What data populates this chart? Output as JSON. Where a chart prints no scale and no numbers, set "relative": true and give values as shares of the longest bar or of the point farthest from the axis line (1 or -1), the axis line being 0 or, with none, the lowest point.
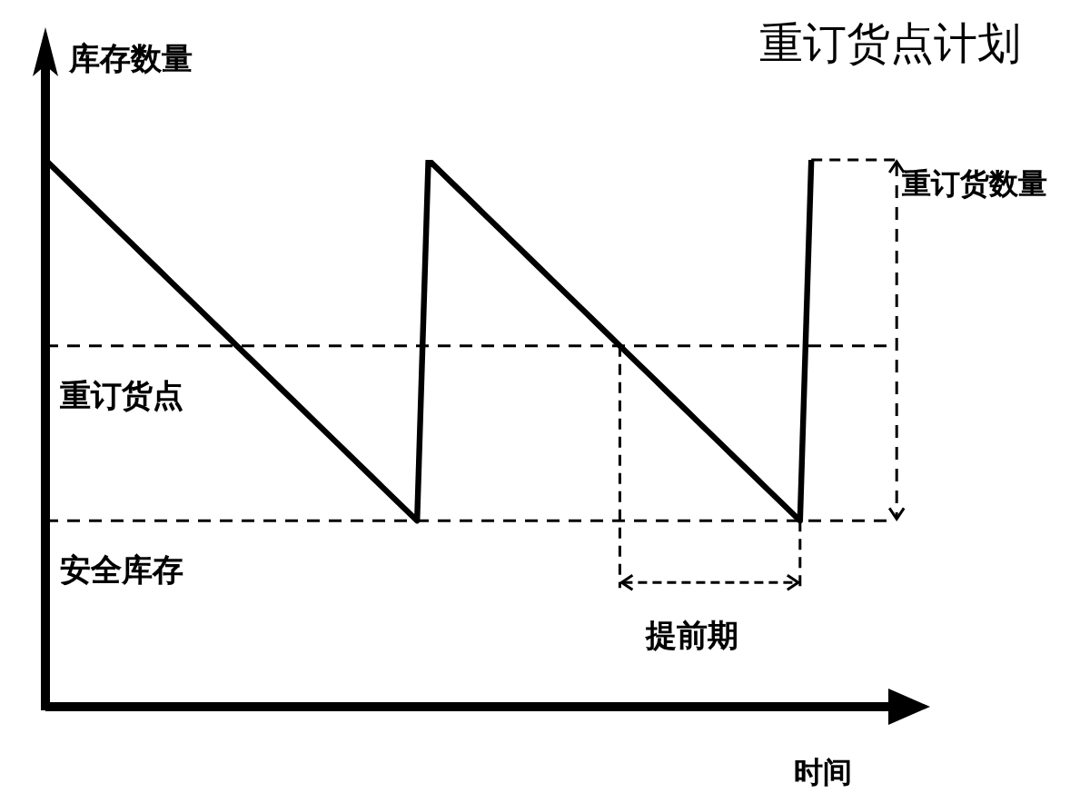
{
  "chart_data": {
    "type": "line",
    "title": "重订货点计划",
    "xlabel": "时间",
    "ylabel": "库存数量",
    "relative": true,
    "marker": "none",
    "line_style": "solid",
    "categories": [
      null,
      null,
      null,
      null,
      null,
      null,
      null,
      null,
      null,
      null,
      null,
      null,
      null,
      null,
      null,
      null,
      null,
      null,
      null,
      null,
      null,
      null,
      null,
      null,
      null,
      null,
      null,
      null,
      null,
      null,
      null,
      null,
      null,
      null,
      null,
      null,
      null,
      null,
      null,
      null,
      null,
      null,
      null,
      null,
      null,
      null,
      null,
      null,
      null,
      null,
      null,
      null,
      null,
      null,
      null,
      null,
      null,
      null,
      null,
      null,
      null,
      null,
      null,
      null,
      null,
      null,
      null,
      null,
      null,
      null,
      null,
      null,
      null,
      null,
      null,
      null
    ],
    "series": [
      {
        "color": "#000000",
        "values": [
          1,
          0.98,
          0.96,
          0.94,
          0.92,
          0.9,
          0.88,
          0.86,
          0.84,
          0.82,
          0.8,
          0.78,
          0.76,
          0.74,
          0.72,
          0.7,
          0.68,
          0.66,
          0.64,
          0.62,
          0.6,
          0.58,
          0.56,
          0.54,
          0.52,
          0.5,
          0.48,
          0.46,
          0.44,
          0.42,
          0.4,
          0.38,
          0.36,
          0.34,
          1,
          0.98,
          0.96,
          0.94,
          0.92,
          0.9,
          0.88,
          0.86,
          0.84,
          0.82,
          0.8,
          0.78,
          0.76,
          0.74,
          0.72,
          0.7,
          0.68,
          0.66,
          0.64,
          0.62,
          0.6,
          0.58,
          0.56,
          0.54,
          0.52,
          0.5,
          0.48,
          0.46,
          0.44,
          0.42,
          0.4,
          0.38,
          0.36,
          0.34,
          1,
          null,
          null,
          null,
          null,
          null,
          null,
          null
        ]
      }
    ],
    "ref_lines": [
      {
        "axis": "y",
        "value": 0.66,
        "label": "重订货点",
        "color": "#000000",
        "line_style": "dashed"
      },
      {
        "axis": "y",
        "value": 0.34,
        "label": "安全库存",
        "color": "#000000",
        "line_style": "dashed"
      }
    ],
    "annotations": [
      "重订货数量",
      "提前期"
    ]
  }
}
